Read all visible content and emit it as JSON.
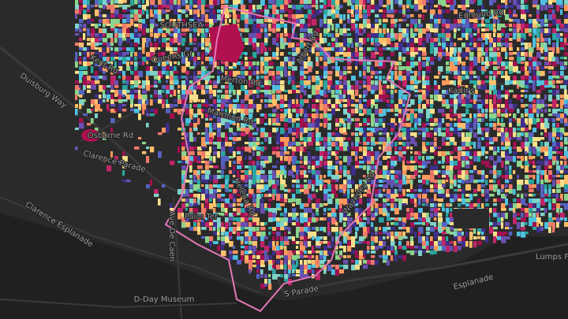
{
  "map": {
    "labels": [
      {
        "text": "SOUTHSEA"
      },
      {
        "text": "Queens Gr"
      },
      {
        "text": "Kent Rd"
      },
      {
        "text": "Duisburg Way"
      },
      {
        "text": "Osborne Rd"
      },
      {
        "text": "Clarence Parade"
      },
      {
        "text": "Clarence Esplanade"
      },
      {
        "text": "Merton Rd"
      },
      {
        "text": "Marmion Rd"
      },
      {
        "text": "Albert Rd"
      },
      {
        "text": "Palm Ter"
      },
      {
        "text": "Ave De Caen"
      },
      {
        "text": "Helena Rd"
      },
      {
        "text": "Waverley Rd"
      },
      {
        "text": "S Parade"
      },
      {
        "text": "Esplanade"
      },
      {
        "text": "D-Day Museum"
      },
      {
        "text": "Lumps F"
      },
      {
        "text": "Kadir's"
      },
      {
        "text": "Edmund Rd"
      }
    ]
  }
}
